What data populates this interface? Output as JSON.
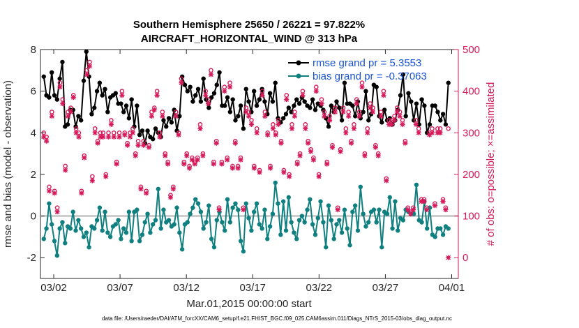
{
  "chart_data": {
    "type": "line",
    "title_line1": "Southern Hemisphere 25650 / 26221 = 97.822%",
    "title_line2": "AIRCRAFT_HORIZONTAL_WIND @ 313 hPa",
    "xlabel": "Mar.01,2015 00:00:00 start",
    "ylabel_left": "rmse and bias (model - observation)",
    "ylabel_right": "# of obs: o=possible; ×=assimilated",
    "xlim": [
      0,
      31.5
    ],
    "ylim_left": [
      -3,
      8
    ],
    "ylim_right": [
      -50,
      500
    ],
    "left_ticks": [
      "-2",
      "0",
      "2",
      "4",
      "6",
      "8"
    ],
    "left_tick_values": [
      -2,
      0,
      2,
      4,
      6,
      8
    ],
    "right_ticks": [
      "0",
      "100",
      "200",
      "300",
      "400",
      "500"
    ],
    "right_tick_values": [
      0,
      100,
      200,
      300,
      400,
      500
    ],
    "x_ticks": [
      "03/02",
      "03/07",
      "03/12",
      "03/17",
      "03/22",
      "03/27",
      "04/01"
    ],
    "x_tick_values": [
      1,
      6,
      11,
      16,
      21,
      26,
      31
    ],
    "legend": [
      {
        "label": "rmse grand pr = 5.3553",
        "color": "#000000"
      },
      {
        "label": "bias grand pr = -0.37063",
        "color": "#0f7f7f"
      }
    ],
    "footnote": "data file: /Users/raeder/DAI/ATM_forcXX/CAM6_setup/f.e21.FHIST_BGC.f09_025.CAM6assim.011/Diags_NTrS_2015-03/obs_diag_output.nc",
    "series": [
      {
        "name": "rmse",
        "color": "#000000",
        "axis": "left",
        "values": [
          6.7,
          5.8,
          5.7,
          6.9,
          5.8,
          5.6,
          6.6,
          7.4,
          4.3,
          4.4,
          5.1,
          5.1,
          4.3,
          4.8,
          4.6,
          6.5,
          7.9,
          6.7,
          4.9,
          5.2,
          6.0,
          6.4,
          5.8,
          6.1,
          5.0,
          5.7,
          5.8,
          5.9,
          5.4,
          5.4,
          5.0,
          5.3,
          4.7,
          5.6,
          4.3,
          5.3,
          3.9,
          4.1,
          3.5,
          4.1,
          3.8,
          3.7,
          4.2,
          4.0,
          3.8,
          4.6,
          4.3,
          4.7,
          4.5,
          5.1,
          4.1,
          4.8,
          6.7,
          6.3,
          6.0,
          6.2,
          5.5,
          5.8,
          6.1,
          5.5,
          6.6,
          5.6,
          5.2,
          5.7,
          5.9,
          6.3,
          6.9,
          5.3,
          5.3,
          5.7,
          5.0,
          5.6,
          4.6,
          4.8,
          5.3,
          4.2,
          6.1,
          5.5,
          5.0,
          6.0,
          5.3,
          5.6,
          6.1,
          5.5,
          4.9,
          5.9,
          5.5,
          6.4,
          4.7,
          4.5,
          4.7,
          4.9,
          5.2,
          5.0,
          5.3,
          5.6,
          5.4,
          5.7,
          5.5,
          5.3,
          5.2,
          5.6,
          5.1,
          5.4,
          5.3,
          5.1,
          4.7,
          4.3,
          5.3,
          5.0,
          5.5,
          5.2,
          4.6,
          6.4,
          5.4,
          5.4,
          5.3,
          4.8,
          5.5,
          4.7,
          5.0,
          6.0,
          4.6,
          4.9,
          6.3,
          6.2,
          4.8,
          4.5,
          5.1,
          4.6,
          4.7,
          4.4,
          4.6,
          5.1,
          5.8,
          6.8,
          4.8,
          5.9,
          5.5,
          4.6,
          5.4,
          4.4,
          5.6,
          5.3,
          4.0,
          4.4,
          5.3,
          5.3,
          5.0,
          4.6,
          4.9,
          4.4,
          6.4
        ]
      },
      {
        "name": "bias",
        "color": "#0f7f7f",
        "axis": "left",
        "values": [
          -1.1,
          -0.6,
          0.6,
          -0.4,
          -1.2,
          -1.9,
          -0.6,
          -0.3,
          -1.3,
          -0.5,
          -0.6,
          0.2,
          -0.7,
          -0.2,
          -0.6,
          -1.0,
          -0.8,
          -1.5,
          -0.5,
          -0.6,
          -0.2,
          0.4,
          -0.7,
          0.2,
          -0.8,
          -1.0,
          -0.5,
          -0.4,
          -0.2,
          -1.1,
          -0.6,
          -0.8,
          0.2,
          -1.2,
          0.2,
          0.3,
          -1.2,
          -0.9,
          -0.3,
          0.1,
          -0.8,
          -0.4,
          -0.2,
          1.3,
          -0.6,
          0.3,
          -0.3,
          -0.2,
          -0.5,
          -0.4,
          0.4,
          -0.8,
          -1.6,
          -0.4,
          -0.3,
          0.1,
          0.4,
          0.8,
          0.6,
          0.2,
          -0.6,
          -0.3,
          0.5,
          -1.1,
          -1.5,
          -0.2,
          0.2,
          -0.3,
          -0.7,
          0.8,
          -0.3,
          0.4,
          0.6,
          0.3,
          -1.2,
          -1.7,
          0.6,
          -0.1,
          -0.7,
          0.2,
          0.6,
          -0.4,
          -0.6,
          0.3,
          -1.1,
          -0.5,
          0.1,
          1.6,
          0.6,
          -0.9,
          0.7,
          -0.7,
          0.9,
          -0.3,
          -0.8,
          -1.1,
          -0.2,
          0.0,
          -0.3,
          0.3,
          0.8,
          -0.4,
          -0.9,
          -0.1,
          0.7,
          -0.3,
          -1.5,
          0.5,
          -0.2,
          -1.1,
          -0.4,
          -0.2,
          -0.8,
          0.3,
          -0.6,
          -1.4,
          0.2,
          0.5,
          -0.7,
          1.4,
          0.1,
          -0.5,
          -0.3,
          0.2,
          0.3,
          -0.3,
          0.3,
          -1.5,
          0.2,
          0.1,
          0.9,
          -0.6,
          0.7,
          -0.7,
          -0.1,
          -0.2,
          0.3,
          0.2,
          0.1,
          0.1,
          1.5,
          -0.2,
          -0.3,
          0.7,
          -0.6,
          0.4,
          -0.9,
          -1.0,
          -0.6,
          -0.6,
          -0.9,
          -0.5,
          -0.6
        ]
      },
      {
        "name": "possible",
        "color": "#d6195a",
        "axis": "right",
        "marker": "o",
        "values": [
          300,
          290,
          170,
          350,
          160,
          120,
          420,
          380,
          220,
          350,
          360,
          390,
          310,
          300,
          160,
          245,
          450,
          470,
          195,
          310,
          280,
          300,
          300,
          200,
          300,
          330,
          300,
          230,
          300,
          400,
          300,
          275,
          300,
          310,
          250,
          280,
          170,
          280,
          160,
          270,
          350,
          360,
          400,
          300,
          350,
          250,
          230,
          150,
          170,
          350,
          300,
          430,
          230,
          250,
          220,
          240,
          230,
          240,
          320,
          250,
          400,
          380,
          450,
          230,
          280,
          120,
          230,
          410,
          240,
          420,
          220,
          280,
          220,
          240,
          120,
          360,
          350,
          330,
          220,
          310,
          210,
          400,
          350,
          300,
          220,
          320,
          300,
          330,
          280,
          210,
          390,
          200,
          320,
          350,
          230,
          250,
          400,
          320,
          280,
          260,
          240,
          410,
          200,
          380,
          350,
          230,
          340,
          270,
          360,
          120,
          260,
          360,
          310,
          350,
          280,
          320,
          380,
          350,
          420,
          250,
          310,
          370,
          360,
          270,
          250,
          350,
          400,
          190,
          330,
          330,
          340,
          360,
          350,
          330,
          280,
          120,
          110,
          120,
          330,
          310,
          140,
          140,
          120,
          300,
          310,
          130,
          310,
          310,
          140,
          120,
          310
        ]
      },
      {
        "name": "assimilated",
        "color": "#d6195a",
        "axis": "right",
        "marker": "x",
        "values": [
          290,
          280,
          160,
          340,
          155,
          110,
          410,
          370,
          210,
          340,
          350,
          385,
          300,
          290,
          155,
          240,
          440,
          460,
          185,
          300,
          275,
          290,
          290,
          195,
          290,
          320,
          290,
          225,
          290,
          390,
          295,
          270,
          290,
          300,
          245,
          270,
          165,
          270,
          155,
          265,
          340,
          355,
          390,
          290,
          340,
          245,
          225,
          145,
          165,
          340,
          295,
          420,
          225,
          245,
          215,
          235,
          225,
          235,
          310,
          245,
          390,
          370,
          440,
          225,
          275,
          115,
          225,
          400,
          235,
          410,
          215,
          275,
          215,
          235,
          115,
          350,
          340,
          320,
          215,
          300,
          205,
          390,
          340,
          295,
          215,
          310,
          295,
          320,
          275,
          205,
          380,
          195,
          310,
          340,
          225,
          245,
          390,
          310,
          275,
          255,
          235,
          400,
          195,
          370,
          340,
          225,
          330,
          265,
          350,
          115,
          255,
          350,
          300,
          340,
          275,
          310,
          370,
          340,
          410,
          245,
          300,
          360,
          350,
          265,
          245,
          340,
          390,
          185,
          320,
          320,
          330,
          350,
          340,
          320,
          275,
          115,
          105,
          115,
          320,
          300,
          135,
          135,
          115,
          295,
          300,
          125,
          300,
          300,
          135,
          115,
          0
        ]
      }
    ]
  }
}
